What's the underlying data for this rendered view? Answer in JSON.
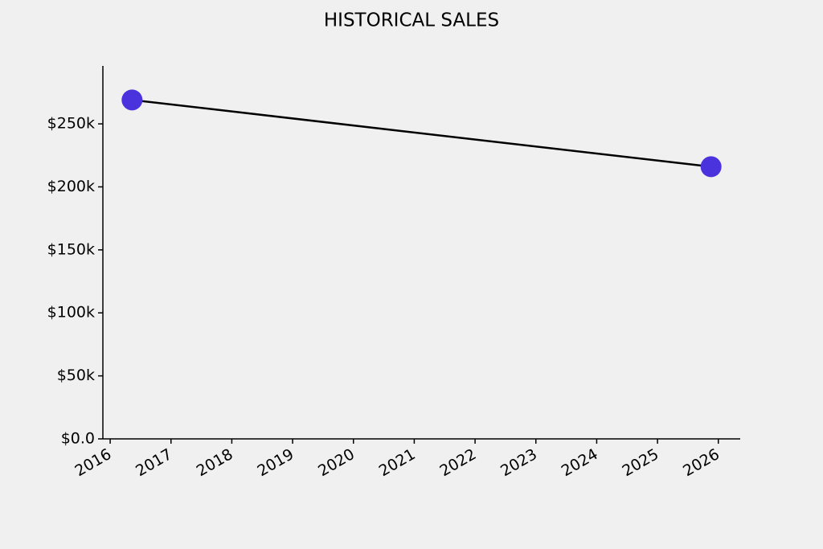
{
  "chart_data": {
    "type": "line",
    "title": "HISTORICAL SALES",
    "x": [
      2016.36,
      2025.88
    ],
    "series": [
      {
        "color": "#000000",
        "marker_color": "#4a33dd",
        "values": [
          269000,
          216000
        ]
      }
    ],
    "xlim": [
      2015.88,
      2026.36
    ],
    "xticks": [
      2016,
      2017,
      2018,
      2019,
      2020,
      2021,
      2022,
      2023,
      2024,
      2025,
      2026
    ],
    "ylim": [
      0,
      296000
    ],
    "yticks": [
      {
        "value": 0,
        "label": "$0.0"
      },
      {
        "value": 50000,
        "label": "$50k"
      },
      {
        "value": 100000,
        "label": "$100k"
      },
      {
        "value": 150000,
        "label": "$150k"
      },
      {
        "value": 200000,
        "label": "$200k"
      },
      {
        "value": 250000,
        "label": "$250k"
      }
    ],
    "grid": false
  }
}
